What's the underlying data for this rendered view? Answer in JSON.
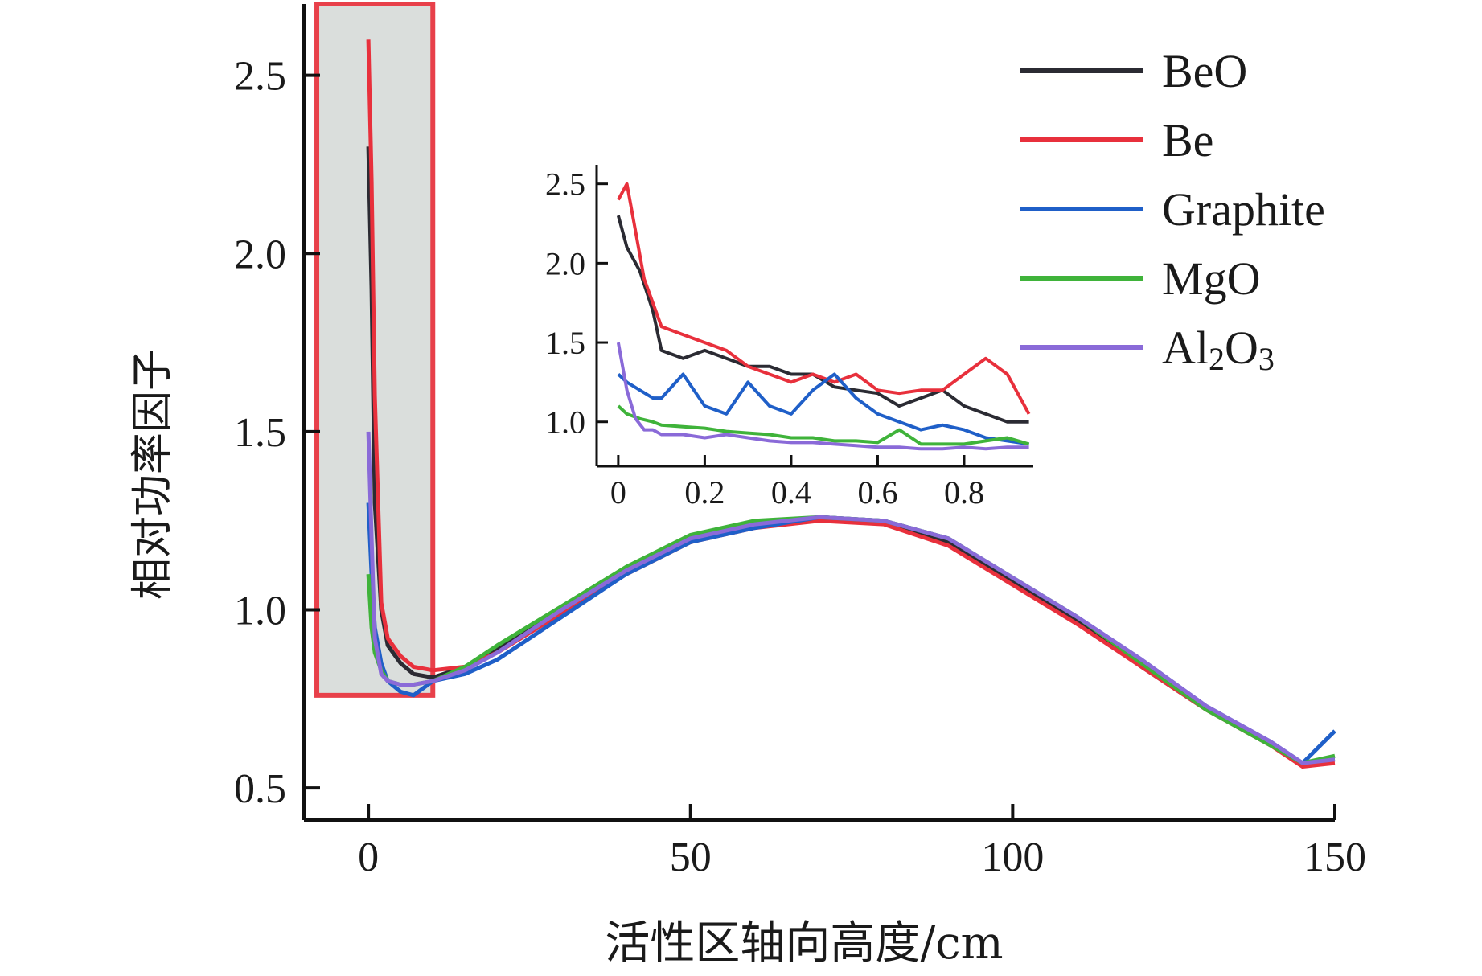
{
  "chart_data": [
    {
      "type": "line",
      "title": "",
      "xlabel": "活性区轴向高度/cm",
      "ylabel": "相对功率因子",
      "xlim": [
        -10,
        150
      ],
      "ylim": [
        0.41,
        2.7
      ],
      "xticks": [
        "0",
        "50",
        "100",
        "150"
      ],
      "yticks": [
        "0.5",
        "1.0",
        "1.5",
        "2.0",
        "2.5"
      ],
      "legend_position": "top-right",
      "highlight_region": {
        "x": [
          -8,
          10
        ],
        "y": [
          0.76,
          2.7
        ],
        "color": "#e8404a"
      },
      "series": [
        {
          "name": "BeO",
          "color": "#2b2b33",
          "x": [
            0,
            0.5,
            1,
            2,
            3,
            5,
            7,
            10,
            15,
            20,
            30,
            40,
            50,
            60,
            70,
            80,
            90,
            100,
            110,
            120,
            130,
            140,
            145,
            150
          ],
          "values": [
            2.3,
            1.9,
            1.3,
            1.0,
            0.9,
            0.85,
            0.82,
            0.81,
            0.84,
            0.89,
            1.0,
            1.1,
            1.19,
            1.24,
            1.26,
            1.25,
            1.19,
            1.08,
            0.97,
            0.84,
            0.72,
            0.62,
            0.57,
            0.58
          ]
        },
        {
          "name": "Be",
          "color": "#e8303c",
          "x": [
            0,
            0.5,
            1,
            2,
            3,
            5,
            7,
            10,
            15,
            20,
            30,
            40,
            50,
            60,
            70,
            80,
            90,
            100,
            110,
            120,
            130,
            140,
            145,
            150
          ],
          "values": [
            2.6,
            2.2,
            1.6,
            1.02,
            0.92,
            0.87,
            0.84,
            0.83,
            0.84,
            0.88,
            0.99,
            1.1,
            1.19,
            1.23,
            1.25,
            1.24,
            1.18,
            1.07,
            0.96,
            0.84,
            0.72,
            0.62,
            0.56,
            0.57
          ]
        },
        {
          "name": "Graphite",
          "color": "#1f5fc8",
          "x": [
            0,
            0.5,
            1,
            2,
            3,
            5,
            7,
            10,
            15,
            20,
            30,
            40,
            50,
            60,
            70,
            80,
            90,
            100,
            110,
            120,
            130,
            140,
            145,
            150
          ],
          "values": [
            1.3,
            1.1,
            0.95,
            0.85,
            0.8,
            0.77,
            0.76,
            0.8,
            0.82,
            0.86,
            0.98,
            1.1,
            1.19,
            1.23,
            1.26,
            1.25,
            1.2,
            1.09,
            0.98,
            0.86,
            0.73,
            0.63,
            0.57,
            0.66
          ]
        },
        {
          "name": "MgO",
          "color": "#3fb33a",
          "x": [
            0,
            0.5,
            1,
            2,
            3,
            5,
            7,
            10,
            15,
            20,
            30,
            40,
            50,
            60,
            70,
            80,
            90,
            100,
            110,
            120,
            130,
            140,
            145,
            150
          ],
          "values": [
            1.1,
            0.95,
            0.88,
            0.83,
            0.8,
            0.79,
            0.79,
            0.8,
            0.84,
            0.9,
            1.01,
            1.12,
            1.21,
            1.25,
            1.26,
            1.25,
            1.2,
            1.09,
            0.98,
            0.85,
            0.72,
            0.62,
            0.57,
            0.59
          ]
        },
        {
          "name": "Al₂O₃",
          "color": "#8a6ad8",
          "x": [
            0,
            0.5,
            1,
            2,
            3,
            5,
            7,
            10,
            15,
            20,
            30,
            40,
            50,
            60,
            70,
            80,
            90,
            100,
            110,
            120,
            130,
            140,
            145,
            150
          ],
          "values": [
            1.5,
            1.2,
            0.92,
            0.82,
            0.8,
            0.79,
            0.79,
            0.8,
            0.83,
            0.88,
            1.0,
            1.11,
            1.2,
            1.24,
            1.26,
            1.25,
            1.2,
            1.09,
            0.98,
            0.86,
            0.73,
            0.63,
            0.57,
            0.58
          ]
        }
      ]
    },
    {
      "type": "line",
      "title": "",
      "xlabel": "",
      "ylabel": "",
      "xlim": [
        -0.05,
        0.96
      ],
      "ylim": [
        0.72,
        2.62
      ],
      "xticks": [
        "0",
        "0.2",
        "0.4",
        "0.6",
        "0.8"
      ],
      "yticks": [
        "1.0",
        "1.5",
        "2.0",
        "2.5"
      ],
      "series": [
        {
          "name": "BeO",
          "color": "#2b2b33",
          "x": [
            0,
            0.02,
            0.05,
            0.08,
            0.1,
            0.15,
            0.2,
            0.25,
            0.3,
            0.35,
            0.4,
            0.45,
            0.5,
            0.55,
            0.6,
            0.65,
            0.7,
            0.75,
            0.8,
            0.85,
            0.9,
            0.95
          ],
          "values": [
            2.3,
            2.1,
            1.95,
            1.7,
            1.45,
            1.4,
            1.45,
            1.4,
            1.35,
            1.35,
            1.3,
            1.3,
            1.22,
            1.2,
            1.18,
            1.1,
            1.15,
            1.2,
            1.1,
            1.05,
            1.0,
            1.0
          ]
        },
        {
          "name": "Be",
          "color": "#e8303c",
          "x": [
            0,
            0.02,
            0.04,
            0.06,
            0.08,
            0.1,
            0.15,
            0.2,
            0.25,
            0.3,
            0.35,
            0.4,
            0.45,
            0.5,
            0.55,
            0.6,
            0.65,
            0.7,
            0.75,
            0.8,
            0.85,
            0.9,
            0.95
          ],
          "values": [
            2.4,
            2.5,
            2.2,
            1.9,
            1.75,
            1.6,
            1.55,
            1.5,
            1.45,
            1.35,
            1.3,
            1.25,
            1.3,
            1.25,
            1.3,
            1.2,
            1.18,
            1.2,
            1.2,
            1.3,
            1.4,
            1.3,
            1.05
          ]
        },
        {
          "name": "Graphite",
          "color": "#1f5fc8",
          "x": [
            0,
            0.02,
            0.05,
            0.08,
            0.1,
            0.15,
            0.2,
            0.25,
            0.3,
            0.35,
            0.4,
            0.45,
            0.5,
            0.55,
            0.6,
            0.65,
            0.7,
            0.75,
            0.8,
            0.85,
            0.9,
            0.95
          ],
          "values": [
            1.3,
            1.25,
            1.2,
            1.15,
            1.15,
            1.3,
            1.1,
            1.05,
            1.25,
            1.1,
            1.05,
            1.2,
            1.3,
            1.15,
            1.05,
            1.0,
            0.95,
            0.98,
            0.95,
            0.9,
            0.88,
            0.86
          ]
        },
        {
          "name": "MgO",
          "color": "#3fb33a",
          "x": [
            0,
            0.02,
            0.05,
            0.08,
            0.1,
            0.15,
            0.2,
            0.25,
            0.3,
            0.35,
            0.4,
            0.45,
            0.5,
            0.55,
            0.6,
            0.65,
            0.7,
            0.75,
            0.8,
            0.85,
            0.9,
            0.95
          ],
          "values": [
            1.1,
            1.05,
            1.02,
            1.0,
            0.98,
            0.97,
            0.96,
            0.94,
            0.93,
            0.92,
            0.9,
            0.9,
            0.88,
            0.88,
            0.87,
            0.95,
            0.86,
            0.86,
            0.86,
            0.88,
            0.9,
            0.86
          ]
        },
        {
          "name": "Al₂O₃",
          "color": "#8a6ad8",
          "x": [
            0,
            0.02,
            0.04,
            0.06,
            0.08,
            0.1,
            0.15,
            0.2,
            0.25,
            0.3,
            0.35,
            0.4,
            0.45,
            0.5,
            0.55,
            0.6,
            0.65,
            0.7,
            0.75,
            0.8,
            0.85,
            0.9,
            0.95
          ],
          "values": [
            1.5,
            1.2,
            1.02,
            0.95,
            0.95,
            0.92,
            0.92,
            0.9,
            0.92,
            0.9,
            0.88,
            0.87,
            0.87,
            0.86,
            0.85,
            0.84,
            0.84,
            0.83,
            0.83,
            0.84,
            0.83,
            0.84,
            0.84
          ]
        }
      ]
    }
  ],
  "legend": {
    "entries": [
      {
        "label": "BeO",
        "color": "#2b2b33"
      },
      {
        "label": "Be",
        "color": "#e8303c"
      },
      {
        "label": "Graphite",
        "color": "#1f5fc8"
      },
      {
        "label": "MgO",
        "color": "#3fb33a"
      },
      {
        "label_main": "Al",
        "label_sub": "2",
        "label_mid": "O",
        "label_sub2": "3",
        "color": "#8a6ad8"
      }
    ]
  }
}
